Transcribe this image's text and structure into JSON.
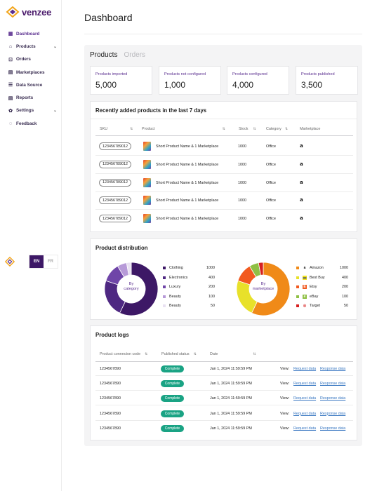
{
  "brand": {
    "name": "venzee"
  },
  "sidebar": {
    "items": [
      {
        "label": "Dashboard",
        "icon": "dashboard-icon",
        "active": true,
        "chevron": false
      },
      {
        "label": "Products",
        "icon": "tag-icon",
        "active": false,
        "chevron": true
      },
      {
        "label": "Orders",
        "icon": "cart-icon",
        "active": false,
        "chevron": false
      },
      {
        "label": "Marketplaces",
        "icon": "store-icon",
        "active": false,
        "chevron": false
      },
      {
        "label": "Data Source",
        "icon": "database-icon",
        "active": false,
        "chevron": false
      },
      {
        "label": "Reports",
        "icon": "report-icon",
        "active": false,
        "chevron": false
      },
      {
        "label": "Settings",
        "icon": "gear-icon",
        "active": false,
        "chevron": true
      },
      {
        "label": "Feedback",
        "icon": "chat-icon",
        "active": false,
        "chevron": false
      }
    ],
    "lang_en": "EN",
    "lang_fr": "FR"
  },
  "page": {
    "title": "Dashboard"
  },
  "tabs": {
    "products": "Products",
    "orders": "Orders"
  },
  "stats": [
    {
      "label": "Products imported",
      "value": "5,000"
    },
    {
      "label": "Products not configured",
      "value": "1,000"
    },
    {
      "label": "Products configured",
      "value": "4,000"
    },
    {
      "label": "Products published",
      "value": "3,500"
    }
  ],
  "recent": {
    "title": "Recently added products in the last 7 days",
    "headers": {
      "sku": "SKU",
      "product": "Product",
      "stock": "Stock",
      "category": "Category",
      "marketplace": "Marketplace"
    },
    "rows": [
      {
        "sku": "123456789012",
        "product": "Short Product Name & 1 Marketplace",
        "stock": "1000",
        "category": "Office",
        "marketplace_icon": "amazon-icon"
      },
      {
        "sku": "123456789012",
        "product": "Short Product Name & 1 Marketplace",
        "stock": "1000",
        "category": "Office",
        "marketplace_icon": "amazon-icon"
      },
      {
        "sku": "123456789012",
        "product": "Short Product Name & 1 Marketplace",
        "stock": "1000",
        "category": "Office",
        "marketplace_icon": "amazon-icon"
      },
      {
        "sku": "123456789012",
        "product": "Short Product Name & 1 Marketplace",
        "stock": "1000",
        "category": "Office",
        "marketplace_icon": "amazon-icon"
      },
      {
        "sku": "123456789012",
        "product": "Short Product Name & 1 Marketplace",
        "stock": "1000",
        "category": "Office",
        "marketplace_icon": "amazon-icon"
      }
    ]
  },
  "distribution": {
    "title": "Product distribution",
    "by_category": {
      "center_label": "By\ncategory",
      "slices": [
        {
          "name": "Clothing",
          "value": "1000",
          "color": "#3d1866"
        },
        {
          "name": "Electronics",
          "value": "400",
          "color": "#4e2882"
        },
        {
          "name": "Luxury",
          "value": "200",
          "color": "#6f45a8"
        },
        {
          "name": "Beauty",
          "value": "100",
          "color": "#b79ad8"
        },
        {
          "name": "Beauty",
          "value": "50",
          "color": "#e9e1f2"
        }
      ]
    },
    "by_marketplace": {
      "center_label": "By\nmarketplace",
      "slices": [
        {
          "name": "Amazon",
          "value": "1000",
          "color": "#f08a18",
          "icon": "amazon-icon"
        },
        {
          "name": "Best Buy",
          "value": "400",
          "color": "#e8e12a",
          "icon": "bestbuy-icon"
        },
        {
          "name": "Etsy",
          "value": "200",
          "color": "#f25a1f",
          "icon": "etsy-icon"
        },
        {
          "name": "eBay",
          "value": "100",
          "color": "#8fc044",
          "icon": "ebay-icon"
        },
        {
          "name": "Target",
          "value": "50",
          "color": "#d62020",
          "icon": "target-icon"
        }
      ]
    }
  },
  "logs": {
    "title": "Product logs",
    "headers": {
      "code": "Product connecton code",
      "status": "Published status",
      "date": "Date"
    },
    "rows": [
      {
        "code": "1234567890",
        "status": "Complete",
        "date": "Jan 1, 2024 11:59:59 PM",
        "view": "View:",
        "request": "Request data",
        "response": "Response data"
      },
      {
        "code": "1234567890",
        "status": "Complete",
        "date": "Jan 1, 2024 11:59:59 PM",
        "view": "View:",
        "request": "Request data",
        "response": "Response data"
      },
      {
        "code": "1234567890",
        "status": "Complete",
        "date": "Jan 1, 2024 11:59:59 PM",
        "view": "View:",
        "request": "Request data",
        "response": "Response data"
      },
      {
        "code": "1234567890",
        "status": "Complete",
        "date": "Jan 1, 2024 11:59:59 PM",
        "view": "View:",
        "request": "Request data",
        "response": "Response data"
      },
      {
        "code": "1234567890",
        "status": "Complete",
        "date": "Jan 1, 2024 11:59:59 PM",
        "view": "View:",
        "request": "Request data",
        "response": "Response data"
      }
    ]
  }
}
